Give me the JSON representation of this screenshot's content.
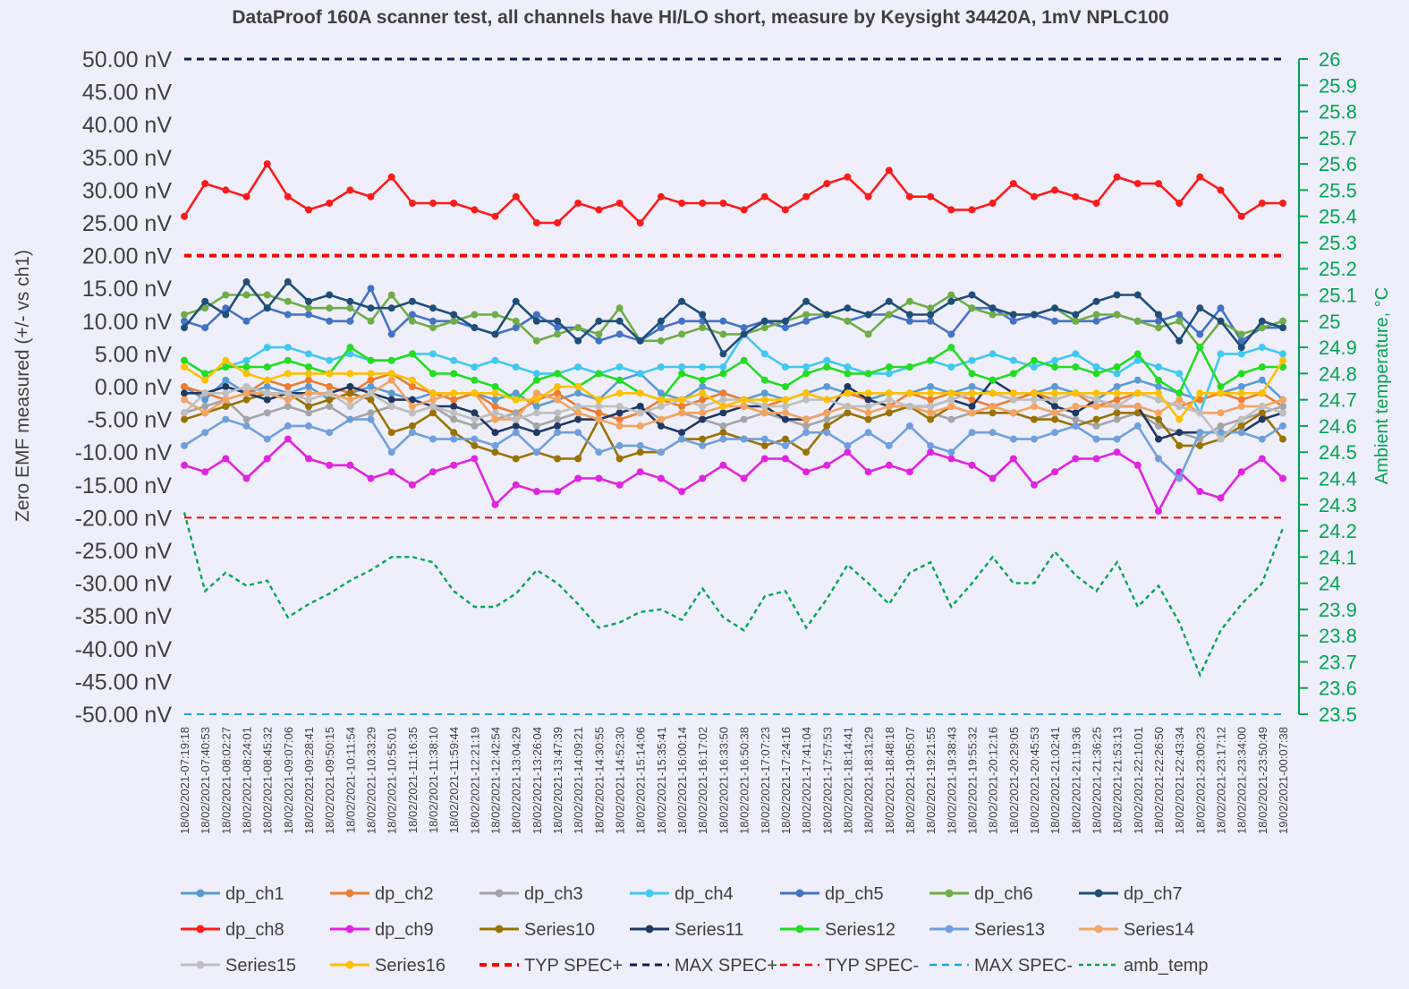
{
  "chart_data": {
    "type": "line",
    "title": "DataProof 160A scanner test, all channels have HI/LO short, measure by Keysight 34420A, 1mV NPLC100",
    "ylabel": "Zero EMF measured (+/- vs ch1)",
    "y2label": "Ambient temperature, °C",
    "ylim": [
      -50,
      50
    ],
    "y2lim": [
      23.5,
      26
    ],
    "y_unit": "nV",
    "y_ticks": [
      50,
      45,
      40,
      35,
      30,
      25,
      20,
      15,
      10,
      5,
      0,
      -5,
      -10,
      -15,
      -20,
      -25,
      -30,
      -35,
      -40,
      -45,
      -50
    ],
    "y2_ticks": [
      26,
      25.9,
      25.8,
      25.7,
      25.6,
      25.5,
      25.4,
      25.3,
      25.2,
      25.1,
      25,
      24.9,
      24.8,
      24.7,
      24.6,
      24.5,
      24.4,
      24.3,
      24.2,
      24.1,
      24,
      23.9,
      23.8,
      23.7,
      23.6,
      23.5
    ],
    "legend_position": "bottom",
    "grid": false,
    "x": [
      "18/02/2021-07:19:18",
      "18/02/2021-07:40:53",
      "18/02/2021-08:02:27",
      "18/02/2021-08:24:01",
      "18/02/2021-08:45:32",
      "18/02/2021-09:07:06",
      "18/02/2021-09:28:41",
      "18/02/2021-09:50:15",
      "18/02/2021-10:11:54",
      "18/02/2021-10:33:29",
      "18/02/2021-10:55:01",
      "18/02/2021-11:16:35",
      "18/02/2021-11:38:10",
      "18/02/2021-11:59:44",
      "18/02/2021-12:21:19",
      "18/02/2021-12:42:54",
      "18/02/2021-13:04:29",
      "18/02/2021-13:26:04",
      "18/02/2021-13:47:39",
      "18/02/2021-14:09:21",
      "18/02/2021-14:30:55",
      "18/02/2021-14:52:30",
      "18/02/2021-15:14:06",
      "18/02/2021-15:35:41",
      "18/02/2021-16:00:14",
      "18/02/2021-16:17:02",
      "18/02/2021-16:33:50",
      "18/02/2021-16:50:38",
      "18/02/2021-17:07:23",
      "18/02/2021-17:24:16",
      "18/02/2021-17:41:04",
      "18/02/2021-17:57:53",
      "18/02/2021-18:14:41",
      "18/02/2021-18:31:29",
      "18/02/2021-18:48:18",
      "18/02/2021-19:05:07",
      "18/02/2021-19:21:55",
      "18/02/2021-19:38:43",
      "18/02/2021-19:55:32",
      "18/02/2021-20:12:16",
      "18/02/2021-20:29:05",
      "18/02/2021-20:45:53",
      "18/02/2021-21:02:41",
      "18/02/2021-21:19:36",
      "18/02/2021-21:36:25",
      "18/02/2021-21:53:13",
      "18/02/2021-22:10:01",
      "18/02/2021-22:26:50",
      "18/02/2021-22:43:34",
      "18/02/2021-23:00:23",
      "18/02/2021-23:17:12",
      "18/02/2021-23:34:00",
      "18/02/2021-23:50:49",
      "19/02/2021-00:07:38"
    ],
    "n_points": 54,
    "series": [
      {
        "name": "dp_ch1",
        "color": "#5b9bd5",
        "style": "marker",
        "values": [
          0,
          -2,
          1,
          -1,
          0,
          -1,
          0,
          -2,
          -1,
          0,
          -1,
          -2,
          -1,
          -2,
          -1,
          -2,
          -1,
          -3,
          -2,
          -1,
          -2,
          1,
          2,
          -1,
          -2,
          0,
          -1,
          -2,
          -1,
          -2,
          -1,
          0,
          -1,
          -2,
          -1,
          -1,
          0,
          -1,
          0,
          -1,
          -2,
          -1,
          0,
          -1,
          -2,
          0,
          1,
          0,
          -1,
          -2,
          -1,
          0,
          1,
          -2
        ]
      },
      {
        "name": "dp_ch2",
        "color": "#ed7d31",
        "style": "marker",
        "values": [
          0,
          -1,
          -2,
          -1,
          1,
          0,
          1,
          0,
          -1,
          1,
          2,
          0,
          -1,
          -2,
          -1,
          -3,
          -4,
          -2,
          -1,
          -3,
          -4,
          -5,
          -4,
          -2,
          -3,
          -2,
          -1,
          -2,
          -3,
          -2,
          -1,
          -2,
          -1,
          -2,
          -3,
          -1,
          -2,
          -1,
          -2,
          -3,
          -2,
          -1,
          -2,
          -1,
          -3,
          -2,
          -1,
          -2,
          -3,
          -2,
          -1,
          -2,
          -1,
          -3
        ]
      },
      {
        "name": "dp_ch3",
        "color": "#a5a5a5",
        "style": "marker",
        "values": [
          -4,
          -3,
          -2,
          -5,
          -4,
          -3,
          -4,
          -3,
          -5,
          -4,
          -3,
          -4,
          -3,
          -5,
          -6,
          -5,
          -4,
          -6,
          -5,
          -4,
          -5,
          -4,
          -3,
          -5,
          -4,
          -5,
          -6,
          -5,
          -4,
          -5,
          -6,
          -5,
          -4,
          -5,
          -4,
          -3,
          -4,
          -5,
          -4,
          -3,
          -4,
          -5,
          -4,
          -5,
          -6,
          -5,
          -4,
          -6,
          -7,
          -8,
          -6,
          -5,
          -4,
          -3
        ]
      },
      {
        "name": "dp_ch4",
        "color": "#41c8f0",
        "style": "marker",
        "values": [
          4,
          2,
          3,
          4,
          6,
          6,
          5,
          4,
          5,
          4,
          4,
          5,
          5,
          4,
          3,
          4,
          3,
          2,
          2,
          3,
          2,
          3,
          2,
          3,
          3,
          3,
          3,
          8,
          5,
          3,
          3,
          4,
          3,
          2,
          2,
          3,
          4,
          3,
          4,
          5,
          4,
          3,
          4,
          5,
          3,
          2,
          4,
          3,
          2,
          -4,
          5,
          5,
          6,
          5
        ]
      },
      {
        "name": "dp_ch5",
        "color": "#4472c4",
        "style": "marker",
        "values": [
          10,
          9,
          12,
          10,
          12,
          11,
          11,
          10,
          10,
          15,
          8,
          11,
          10,
          10,
          9,
          8,
          9,
          11,
          9,
          9,
          7,
          8,
          7,
          9,
          10,
          10,
          10,
          9,
          10,
          9,
          10,
          11,
          10,
          11,
          11,
          10,
          10,
          8,
          12,
          12,
          10,
          11,
          10,
          10,
          10,
          11,
          10,
          10,
          11,
          8,
          12,
          7,
          9,
          9
        ]
      },
      {
        "name": "dp_ch6",
        "color": "#70ad47",
        "style": "marker",
        "values": [
          11,
          12,
          14,
          14,
          14,
          13,
          12,
          12,
          12,
          10,
          14,
          10,
          9,
          10,
          11,
          11,
          10,
          7,
          8,
          9,
          8,
          12,
          7,
          7,
          8,
          9,
          8,
          8,
          9,
          10,
          11,
          11,
          10,
          8,
          11,
          13,
          12,
          14,
          12,
          11,
          11,
          11,
          12,
          10,
          11,
          11,
          10,
          9,
          10,
          6,
          10,
          8,
          9,
          10
        ]
      },
      {
        "name": "dp_ch7",
        "color": "#1f4e79",
        "style": "marker",
        "values": [
          9,
          13,
          11,
          16,
          12,
          16,
          13,
          14,
          13,
          12,
          12,
          13,
          12,
          11,
          9,
          8,
          13,
          10,
          10,
          7,
          10,
          10,
          7,
          10,
          13,
          11,
          5,
          8,
          10,
          10,
          13,
          11,
          12,
          11,
          13,
          11,
          11,
          13,
          14,
          12,
          11,
          11,
          12,
          11,
          13,
          14,
          14,
          11,
          7,
          12,
          10,
          6,
          10,
          9
        ]
      },
      {
        "name": "dp_ch8",
        "color": "#ff1a1a",
        "style": "marker",
        "values": [
          26,
          31,
          30,
          29,
          34,
          29,
          27,
          28,
          30,
          29,
          32,
          28,
          28,
          28,
          27,
          26,
          29,
          25,
          25,
          28,
          27,
          28,
          25,
          29,
          28,
          28,
          28,
          27,
          29,
          27,
          29,
          31,
          32,
          29,
          33,
          29,
          29,
          27,
          27,
          28,
          31,
          29,
          30,
          29,
          28,
          32,
          31,
          31,
          28,
          32,
          30,
          26,
          28,
          28
        ]
      },
      {
        "name": "dp_ch9",
        "color": "#e024e0",
        "style": "marker",
        "values": [
          -12,
          -13,
          -11,
          -14,
          -11,
          -8,
          -11,
          -12,
          -12,
          -14,
          -13,
          -15,
          -13,
          -12,
          -11,
          -18,
          -15,
          -16,
          -16,
          -14,
          -14,
          -15,
          -13,
          -14,
          -16,
          -14,
          -12,
          -14,
          -11,
          -11,
          -13,
          -12,
          -10,
          -13,
          -12,
          -13,
          -10,
          -11,
          -12,
          -14,
          -11,
          -15,
          -13,
          -11,
          -11,
          -10,
          -12,
          -19,
          -13,
          -16,
          -17,
          -13,
          -11,
          -14
        ]
      },
      {
        "name": "Series10",
        "color": "#997300",
        "style": "marker",
        "values": [
          -5,
          -4,
          -3,
          -2,
          -1,
          -1,
          -3,
          -2,
          -1,
          -2,
          -7,
          -6,
          -4,
          -7,
          -9,
          -10,
          -11,
          -10,
          -11,
          -11,
          -5,
          -11,
          -10,
          -10,
          -8,
          -8,
          -7,
          -8,
          -9,
          -8,
          -10,
          -6,
          -4,
          -5,
          -4,
          -3,
          -5,
          -3,
          -4,
          -4,
          -4,
          -5,
          -5,
          -6,
          -5,
          -4,
          -4,
          -5,
          -9,
          -9,
          -8,
          -6,
          -4,
          -8
        ]
      },
      {
        "name": "Series11",
        "color": "#203864",
        "style": "marker",
        "values": [
          -1,
          -1,
          0,
          -1,
          -2,
          -1,
          -1,
          -1,
          0,
          -1,
          -2,
          -2,
          -3,
          -3,
          -4,
          -7,
          -6,
          -7,
          -6,
          -5,
          -5,
          -4,
          -3,
          -6,
          -7,
          -5,
          -4,
          -3,
          -3,
          -5,
          -5,
          -4,
          0,
          -2,
          -3,
          -3,
          -3,
          -2,
          -3,
          1,
          -1,
          -1,
          -3,
          -4,
          -2,
          -3,
          -3,
          -8,
          -7,
          -7,
          -7,
          -7,
          -5,
          -4
        ]
      },
      {
        "name": "Series12",
        "color": "#22dd22",
        "style": "marker",
        "values": [
          4,
          2,
          3,
          3,
          3,
          4,
          3,
          2,
          6,
          4,
          4,
          5,
          2,
          2,
          1,
          0,
          -2,
          1,
          2,
          0,
          2,
          1,
          -1,
          -2,
          2,
          1,
          2,
          4,
          1,
          0,
          2,
          3,
          2,
          2,
          3,
          3,
          4,
          6,
          2,
          1,
          2,
          4,
          3,
          3,
          2,
          3,
          5,
          1,
          -1,
          6,
          0,
          2,
          3,
          3
        ]
      },
      {
        "name": "Series13",
        "color": "#6fa0dc",
        "style": "marker",
        "values": [
          -9,
          -7,
          -5,
          -6,
          -8,
          -6,
          -6,
          -7,
          -5,
          -5,
          -10,
          -7,
          -8,
          -8,
          -8,
          -9,
          -7,
          -10,
          -7,
          -7,
          -10,
          -9,
          -9,
          -10,
          -8,
          -9,
          -8,
          -8,
          -8,
          -9,
          -7,
          -7,
          -9,
          -7,
          -9,
          -6,
          -9,
          -10,
          -7,
          -7,
          -8,
          -8,
          -7,
          -6,
          -8,
          -8,
          -6,
          -11,
          -14,
          -7,
          -7,
          -7,
          -8,
          -6
        ]
      },
      {
        "name": "Series14",
        "color": "#f4a460",
        "style": "marker",
        "values": [
          -2,
          -4,
          -2,
          -1,
          -1,
          -2,
          -1,
          -1,
          -2,
          -1,
          1,
          -3,
          -2,
          -1,
          -1,
          -5,
          -5,
          -1,
          -2,
          -4,
          -5,
          -6,
          -6,
          -5,
          -4,
          -4,
          -3,
          -3,
          -4,
          -4,
          -5,
          -4,
          -3,
          -4,
          -3,
          -3,
          -4,
          -3,
          -4,
          -3,
          -4,
          -3,
          -4,
          -3,
          -3,
          -3,
          -3,
          -4,
          -2,
          -4,
          -4,
          -3,
          -3,
          -2
        ]
      },
      {
        "name": "Series15",
        "color": "#bfbfbf",
        "style": "marker",
        "values": [
          -4,
          -1,
          -1,
          0,
          -1,
          -1,
          -2,
          -1,
          -3,
          -1,
          -3,
          -4,
          -3,
          -4,
          -5,
          -4,
          -5,
          -4,
          -4,
          -3,
          -3,
          -3,
          -4,
          -3,
          -2,
          -3,
          -2,
          -2,
          -3,
          -3,
          -2,
          -2,
          -3,
          -3,
          -2,
          -3,
          -3,
          -2,
          -1,
          -1,
          -2,
          -2,
          -2,
          -1,
          -2,
          -3,
          -1,
          -2,
          -3,
          -4,
          -8,
          -5,
          -3,
          -4
        ]
      },
      {
        "name": "Series16",
        "color": "#ffc000",
        "style": "marker",
        "values": [
          3,
          1,
          4,
          2,
          1,
          2,
          2,
          2,
          2,
          2,
          2,
          1,
          -1,
          -1,
          -1,
          -1,
          -2,
          -2,
          0,
          0,
          -2,
          -1,
          -1,
          -2,
          -2,
          -1,
          -3,
          -2,
          -2,
          -2,
          -1,
          -2,
          -1,
          -1,
          -1,
          -1,
          -1,
          -1,
          -1,
          -1,
          -1,
          -1,
          -1,
          -1,
          -1,
          -1,
          -1,
          -1,
          -5,
          -1,
          -1,
          -1,
          -1,
          4
        ]
      }
    ],
    "reference_lines": [
      {
        "name": "TYP SPEC+",
        "color": "#ff0000",
        "dash": "8 6",
        "width": 4,
        "value": 20
      },
      {
        "name": "MAX SPEC+",
        "color": "#0d1f4f",
        "dash": "8 6",
        "width": 3,
        "value": 50
      },
      {
        "name": "TYP SPEC-",
        "color": "#ff0000",
        "dash": "8 6",
        "width": 2,
        "value": -20
      },
      {
        "name": "MAX SPEC-",
        "color": "#21a3dc",
        "dash": "8 6",
        "width": 2,
        "value": -50
      }
    ],
    "temperature_series": {
      "name": "amb_temp",
      "color": "#00a651",
      "dash": "5 4",
      "axis": "right",
      "values": [
        24.27,
        23.97,
        24.04,
        23.99,
        24.01,
        23.87,
        23.92,
        23.96,
        24.01,
        24.05,
        24.1,
        24.1,
        24.08,
        23.97,
        23.91,
        23.91,
        23.96,
        24.05,
        24,
        23.92,
        23.83,
        23.85,
        23.89,
        23.9,
        23.86,
        23.98,
        23.87,
        23.82,
        23.95,
        23.97,
        23.83,
        23.94,
        24.07,
        24,
        23.92,
        24.04,
        24.08,
        23.91,
        24,
        24.1,
        24,
        24,
        24.12,
        24.03,
        23.97,
        24.08,
        23.91,
        23.99,
        23.85,
        23.65,
        23.82,
        23.92,
        24,
        24.21
      ]
    },
    "legend": [
      [
        "dp_ch1",
        "dp_ch2",
        "dp_ch3",
        "dp_ch4",
        "dp_ch5",
        "dp_ch6",
        "dp_ch7"
      ],
      [
        "dp_ch8",
        "dp_ch9",
        "Series10",
        "Series11",
        "Series12",
        "Series13",
        "Series14"
      ],
      [
        "Series15",
        "Series16",
        "TYP SPEC+",
        "MAX SPEC+",
        "TYP SPEC-",
        "MAX SPEC-",
        "amb_temp"
      ]
    ]
  }
}
